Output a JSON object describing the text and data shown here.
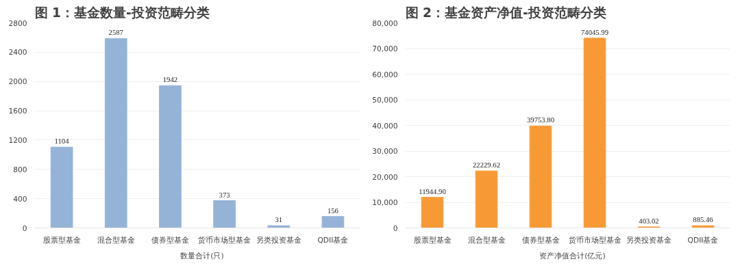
{
  "chart_data": [
    {
      "type": "bar",
      "title": "图 1：基金数量-投资范畴分类",
      "categories": [
        "股票型基金",
        "混合型基金",
        "债券型基金",
        "货币市场型基金",
        "另类投资基金",
        "QDII基金"
      ],
      "series": [
        {
          "name": "数量合计(只)",
          "color": "#95b3d7",
          "values": [
            1104,
            2587,
            1942,
            373,
            31,
            156
          ]
        }
      ],
      "ylim": [
        0,
        2800
      ],
      "yticks": [
        0,
        400,
        800,
        1200,
        1600,
        2000,
        2400,
        2800
      ],
      "grid": "y",
      "legend": "bottom",
      "data_labels": true
    },
    {
      "type": "bar",
      "title": "图 2：基金资产净值-投资范畴分类",
      "categories": [
        "股票型基金",
        "混合型基金",
        "债券型基金",
        "货币市场型基金",
        "另类投资基金",
        "QDII基金"
      ],
      "series": [
        {
          "name": "资产净值合计(亿元)",
          "color": "#f79a36",
          "values": [
            11944.9,
            22229.62,
            39753.8,
            74045.99,
            403.02,
            885.46
          ],
          "value_labels": [
            "11944.90",
            "22229.62",
            "39753.80",
            "74045.99",
            "403.02",
            "885.46"
          ]
        }
      ],
      "ylim": [
        0,
        80000
      ],
      "yticks": [
        {
          "value": 0,
          "label": "0"
        },
        {
          "value": 10000,
          "label": "10,000"
        },
        {
          "value": 20000,
          "label": "20,000"
        },
        {
          "value": 30000,
          "label": "30,000"
        },
        {
          "value": 40000,
          "label": "40,000"
        },
        {
          "value": 50000,
          "label": "50,000"
        },
        {
          "value": 60000,
          "label": "60,000"
        },
        {
          "value": 70000,
          "label": "70,000"
        },
        {
          "value": 80000,
          "label": "80,000"
        }
      ],
      "grid": "y",
      "legend": "bottom"
    }
  ]
}
